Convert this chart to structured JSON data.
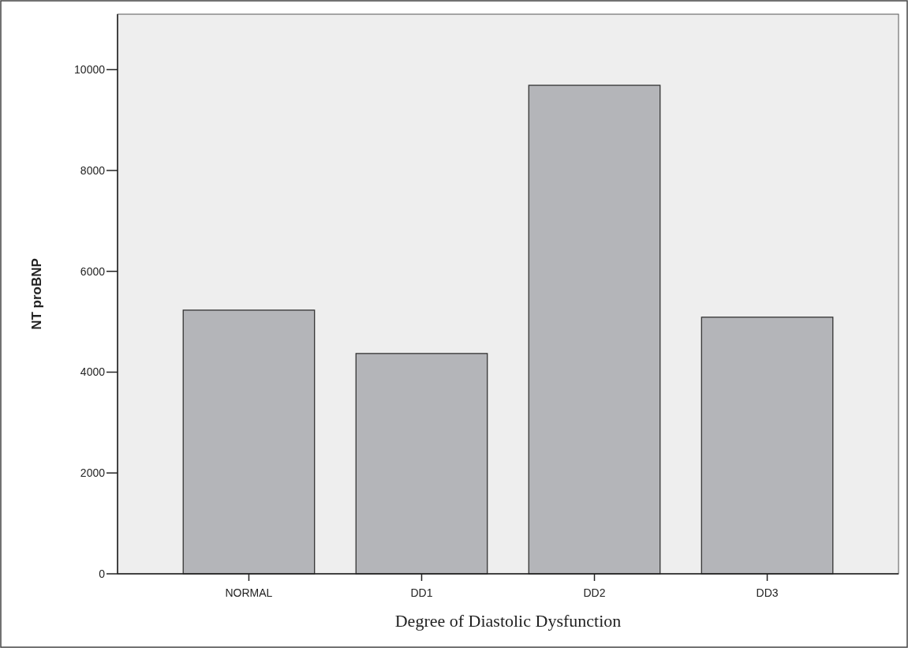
{
  "chart_data": {
    "type": "bar",
    "xlabel": "Degree of Diastolic Dysfunction",
    "ylabel": "NT proBNP",
    "categories": [
      "NORMAL",
      "DD1",
      "DD2",
      "DD3"
    ],
    "values": [
      5230,
      4370,
      9690,
      5090
    ],
    "color": "#b4b5b9",
    "ylim": [
      0,
      11100
    ],
    "yticks": [
      0,
      2000,
      4000,
      6000,
      8000,
      10000
    ],
    "grid": false
  }
}
